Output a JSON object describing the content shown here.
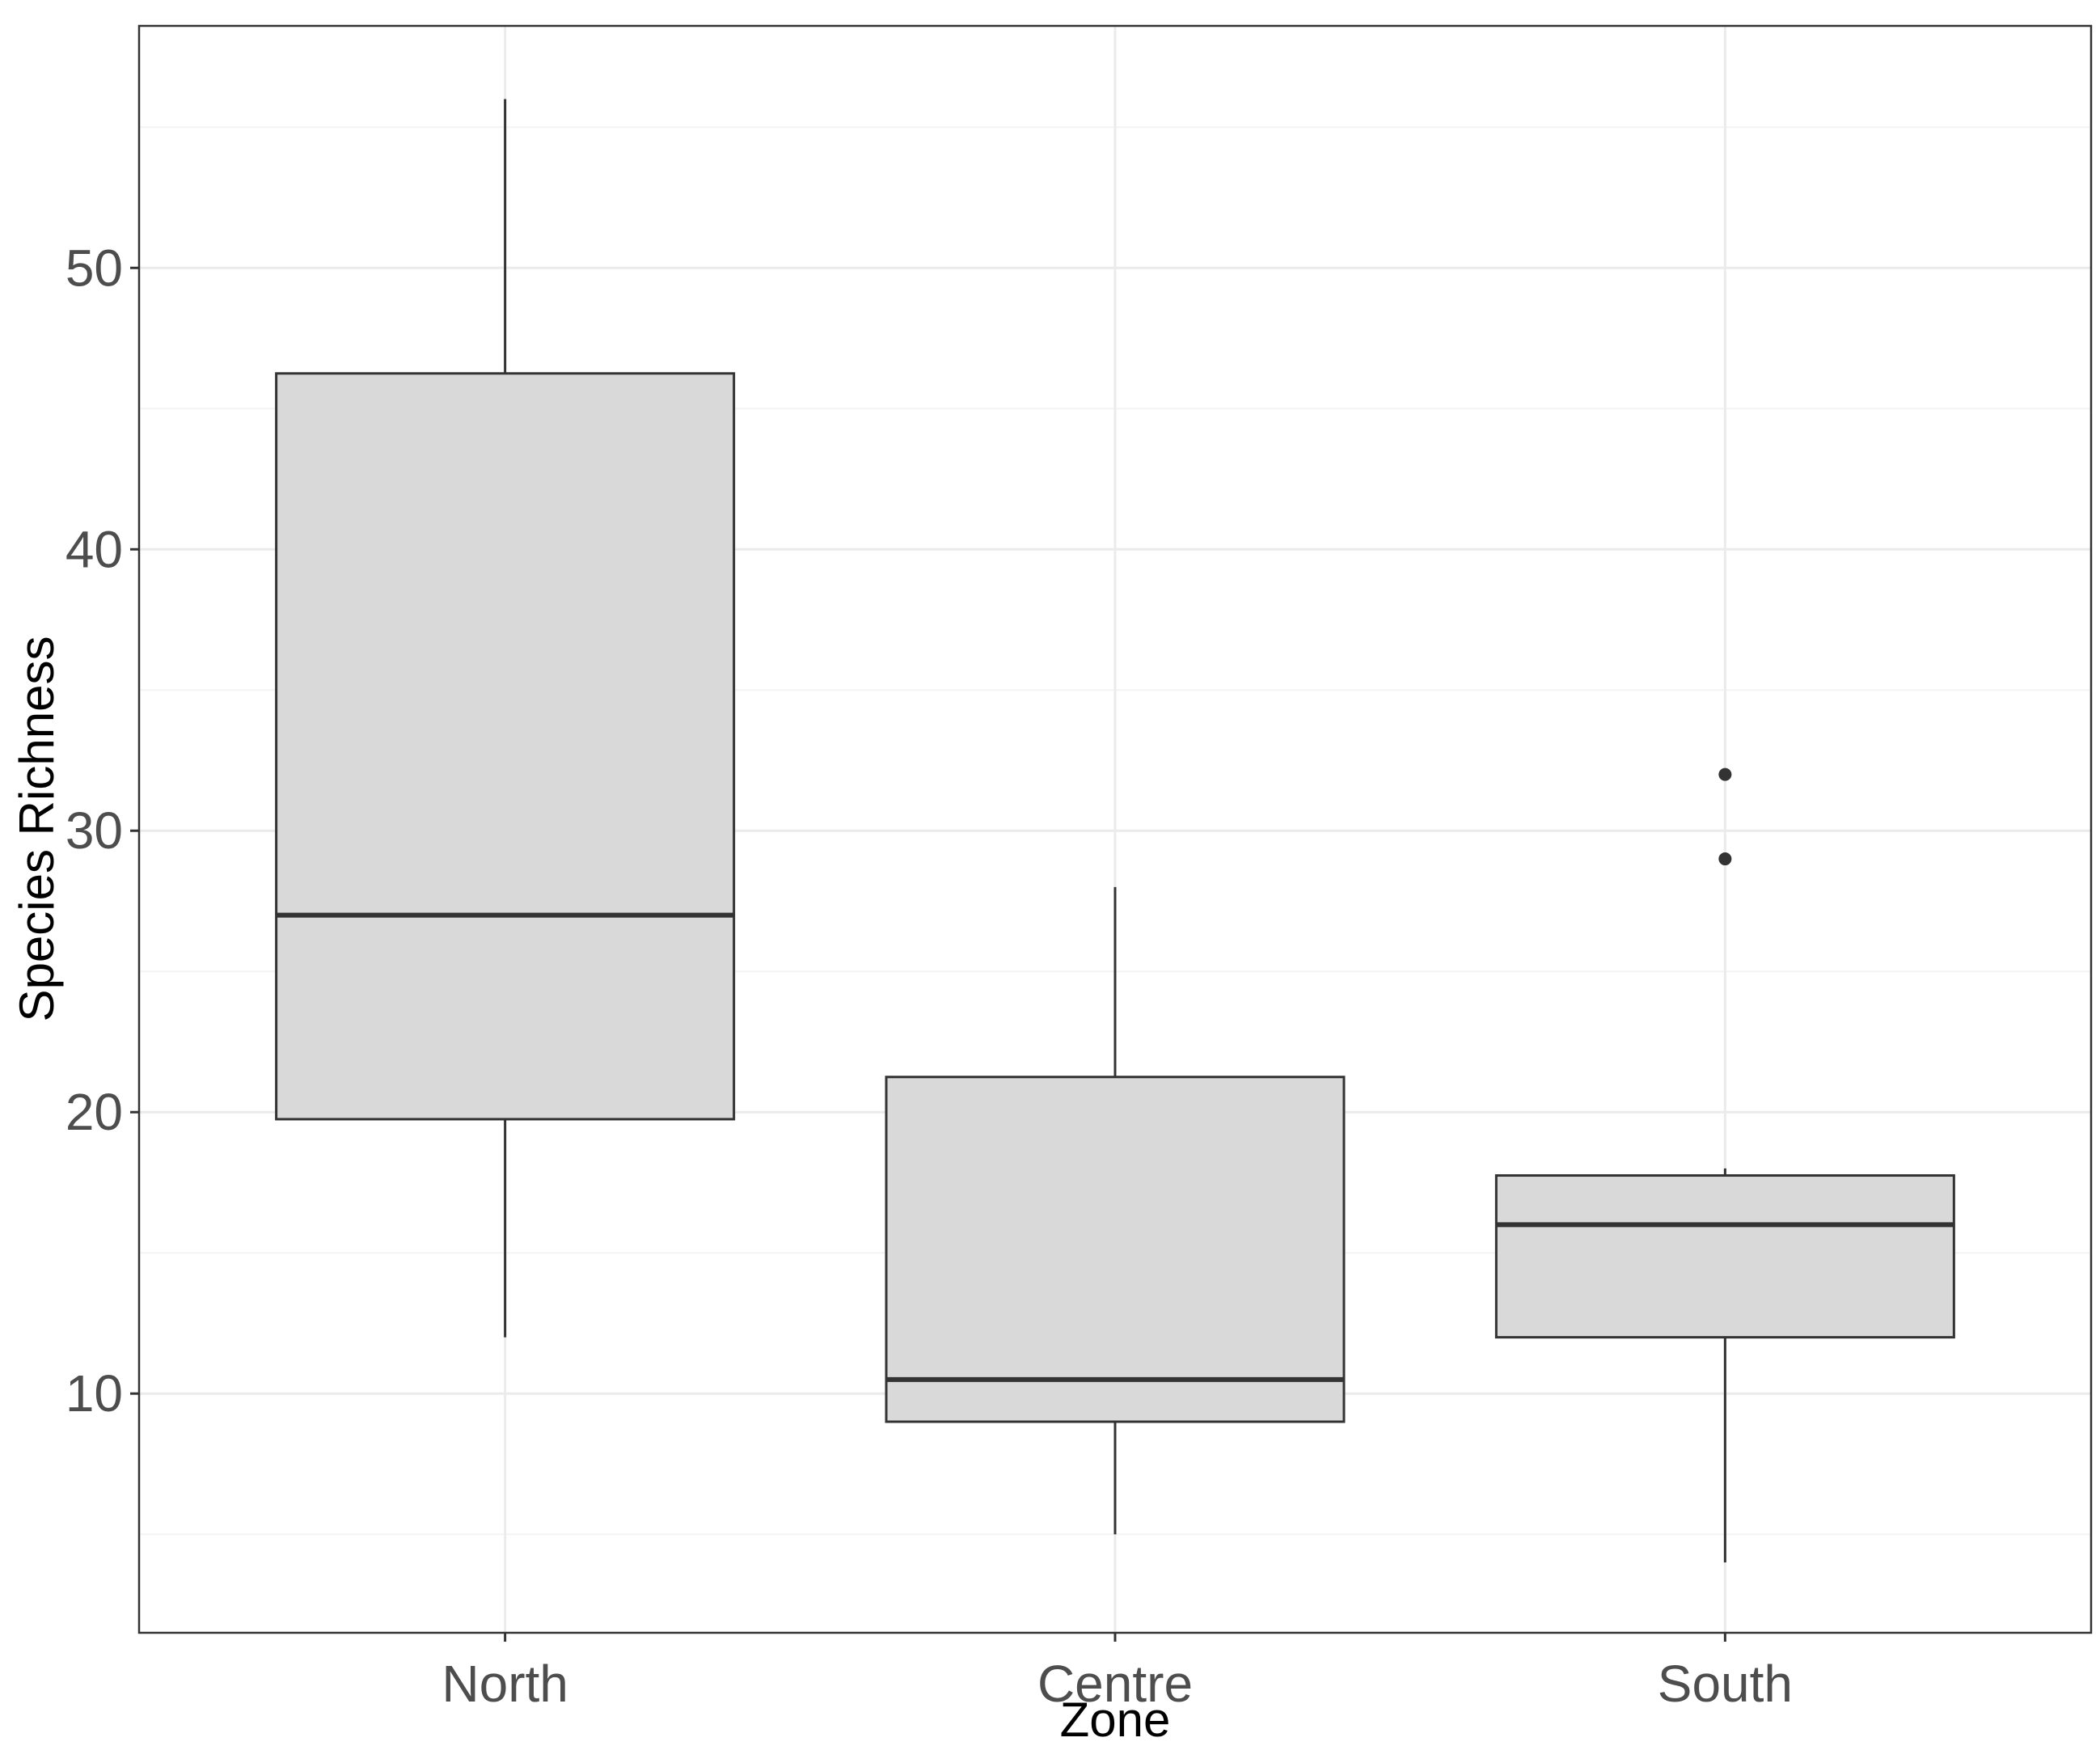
{
  "chart_data": {
    "type": "boxplot",
    "title": "",
    "xlabel": "Zone",
    "ylabel": "Species Richness",
    "ylim": [
      1.5,
      58.6
    ],
    "yticks": [
      10,
      20,
      30,
      40,
      50
    ],
    "ytick_labels": [
      "10",
      "20",
      "30",
      "40",
      "50"
    ],
    "grid": true,
    "legend": "none",
    "categories": [
      "North",
      "Centre",
      "South"
    ],
    "boxes": [
      {
        "category": "North",
        "whisker_low": 12,
        "q1": 19.75,
        "median": 27,
        "q3": 46.25,
        "whisker_high": 56,
        "outliers": []
      },
      {
        "category": "Centre",
        "whisker_low": 5,
        "q1": 9,
        "median": 10.5,
        "q3": 21.25,
        "whisker_high": 28,
        "outliers": []
      },
      {
        "category": "South",
        "whisker_low": 4,
        "q1": 12,
        "median": 16,
        "q3": 17.75,
        "whisker_high": 18,
        "outliers": [
          29,
          32
        ]
      }
    ],
    "colors": {
      "box_fill": "#d9d9d9",
      "box_stroke": "#333333",
      "grid_major": "#ebebeb",
      "grid_minor": "#f4f4f4",
      "panel_border": "#333333",
      "tick_text": "#4d4d4d",
      "axis_title": "#000000"
    }
  }
}
